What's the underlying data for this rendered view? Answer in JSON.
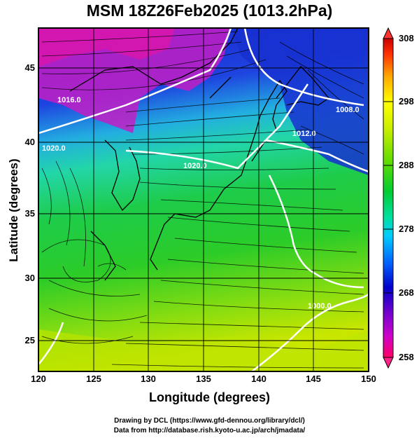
{
  "title": "MSM 18Z26Feb2025 (1013.2hPa)",
  "axes": {
    "xlabel": "Longitude (degrees)",
    "ylabel": "Latitude  (degrees)",
    "x_ticks": [
      "120",
      "125",
      "130",
      "135",
      "140",
      "145",
      "150"
    ],
    "y_ticks": [
      "45",
      "40",
      "35",
      "30",
      "25"
    ],
    "x_range": [
      120,
      150
    ],
    "y_range": [
      22.4,
      47.6
    ]
  },
  "colorbar": {
    "ticks": [
      "308",
      "298",
      "288",
      "278",
      "268",
      "258"
    ],
    "range": [
      258,
      308
    ],
    "colors": [
      "#ff0066",
      "#cc00cc",
      "#0000cc",
      "#0066ff",
      "#00ccff",
      "#00e0a0",
      "#00cc33",
      "#66dd00",
      "#ccee00",
      "#ffff00",
      "#ffaa00",
      "#ff3300",
      "#cc0000"
    ]
  },
  "contour_labels": [
    "1016.0",
    "1020.0",
    "1012.0",
    "1008.0",
    "1020.0",
    "1000.0"
  ],
  "credits": {
    "line1": "Drawing by DCL (https://www.gfd-dennou.org/library/dcl/)",
    "line2": "Data from http://database.rish.kyoto-u.ac.jp/arch/jmadata/"
  }
}
